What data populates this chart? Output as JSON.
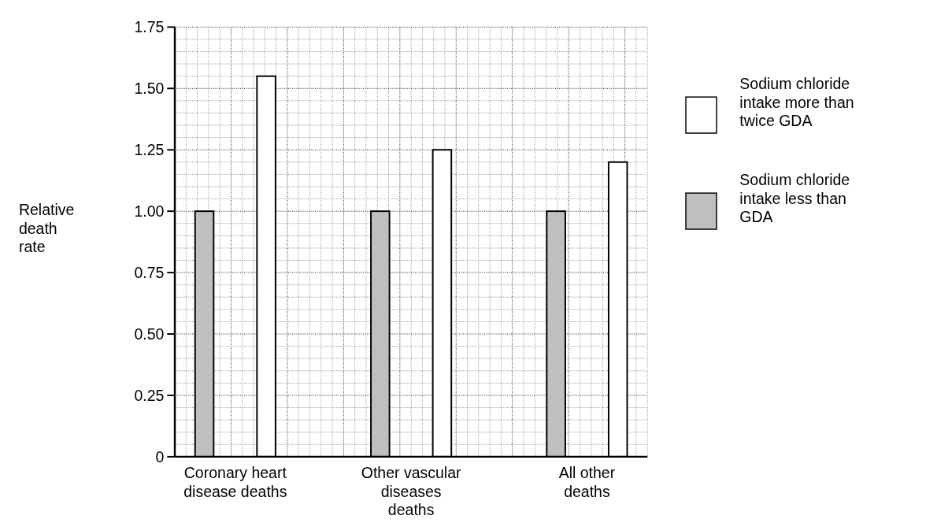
{
  "chart_data": {
    "type": "bar",
    "ylabel": "Relative death rate",
    "categories": [
      "Coronary heart disease deaths",
      "Other vascular diseases deaths",
      "All other deaths"
    ],
    "series": [
      {
        "name": "Sodium chloride intake less than GDA",
        "color": "#bfbfbf",
        "values": [
          1.0,
          1.0,
          1.0
        ]
      },
      {
        "name": "Sodium chloride intake more than twice GDA",
        "color": "#ffffff",
        "values": [
          1.55,
          1.25,
          1.2
        ]
      }
    ],
    "ylim": [
      0,
      1.75
    ],
    "yticks": [
      0,
      0.25,
      {
        "value": 0.5,
        "label": "0.50"
      },
      0.75,
      {
        "value": 1,
        "label": "1.00"
      },
      {
        "value": 1.25,
        "label": "1.25"
      },
      {
        "value": 1.5,
        "label": "1.50"
      },
      {
        "value": 1.75,
        "label": "1.75"
      }
    ],
    "grid": true,
    "legend": "right"
  }
}
